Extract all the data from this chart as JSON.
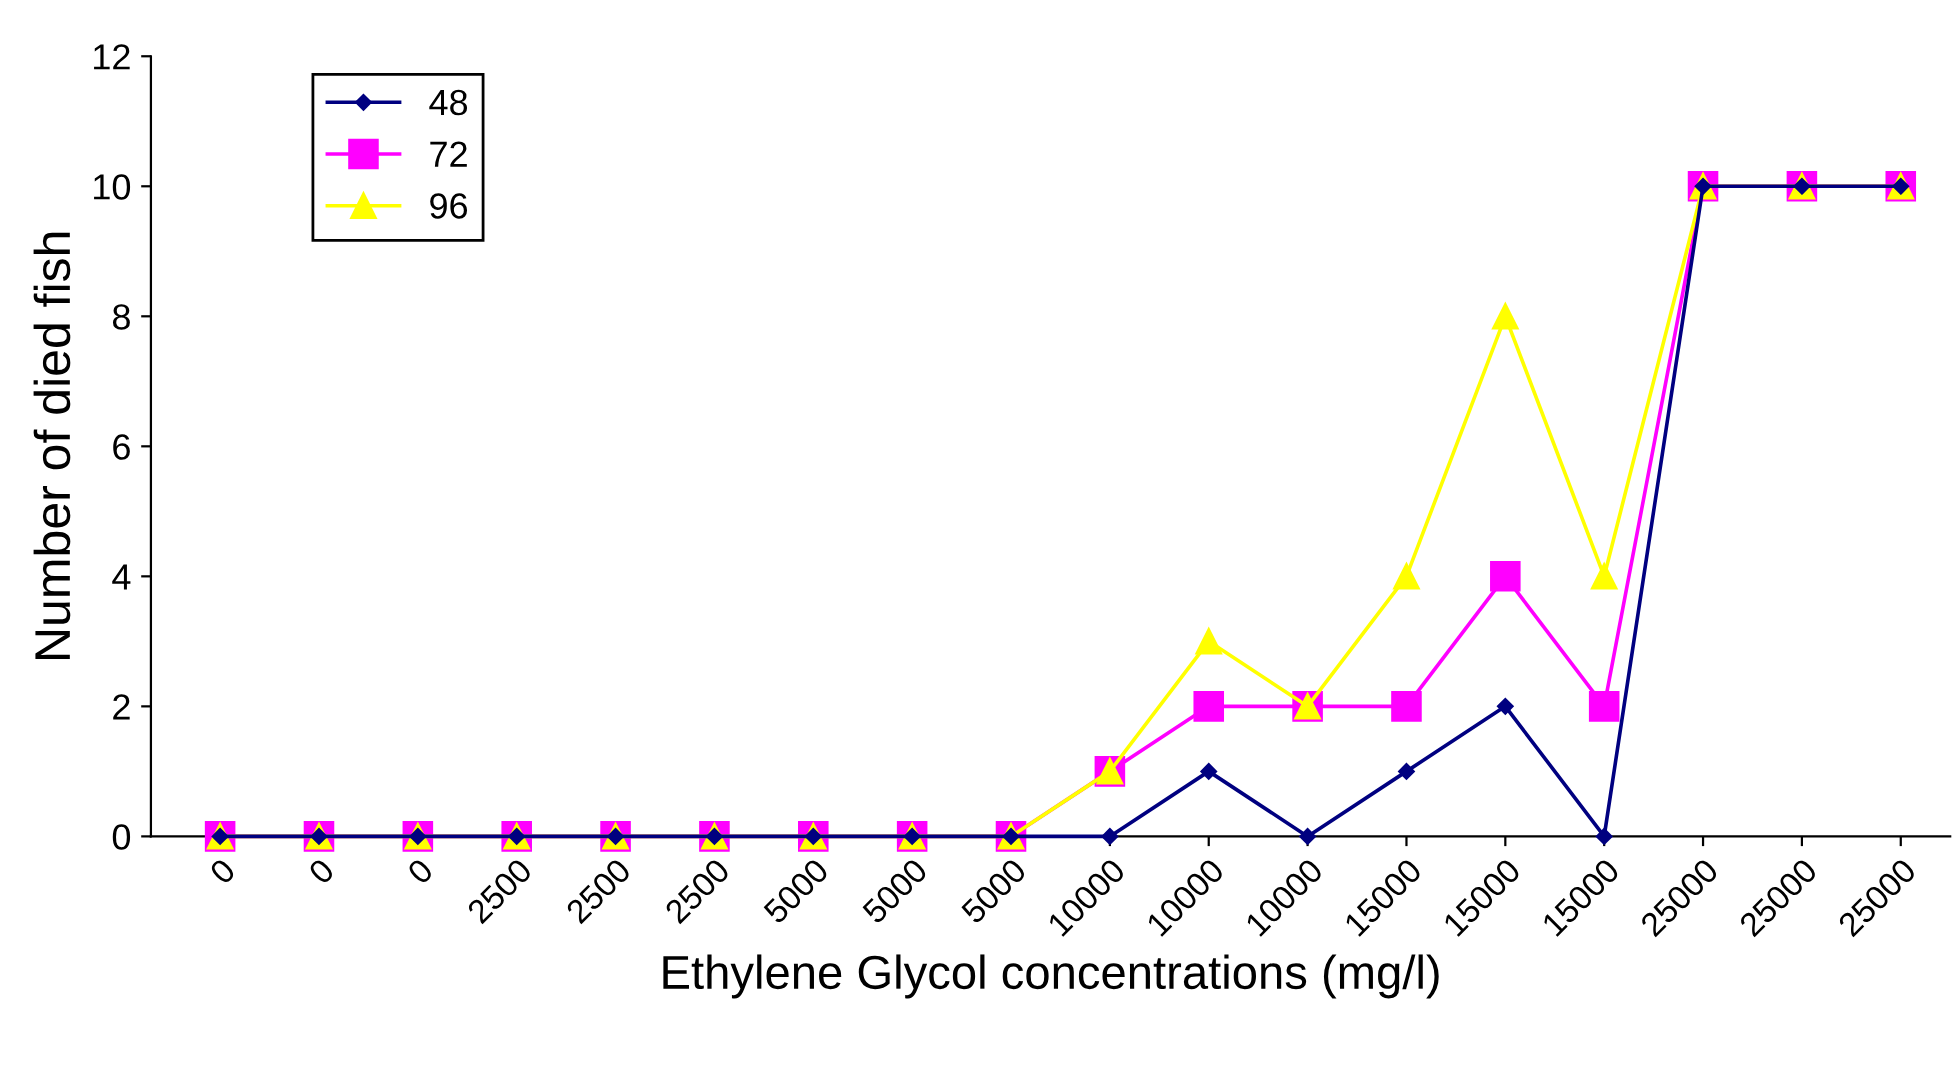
{
  "chart_data": {
    "type": "line",
    "xlabel": "Ethylene Glycol concentrations (mg/l)",
    "ylabel": "Number of died fish",
    "categories": [
      "0",
      "0",
      "0",
      "2500",
      "2500",
      "2500",
      "5000",
      "5000",
      "5000",
      "10000",
      "10000",
      "10000",
      "15000",
      "15000",
      "15000",
      "25000",
      "25000",
      "25000"
    ],
    "series": [
      {
        "name": "48",
        "color": "#000080",
        "marker": "diamond",
        "values": [
          0,
          0,
          0,
          0,
          0,
          0,
          0,
          0,
          0,
          0,
          1,
          0,
          1,
          2,
          0,
          10,
          10,
          10
        ]
      },
      {
        "name": "72",
        "color": "#ff00ff",
        "marker": "square",
        "values": [
          0,
          0,
          0,
          0,
          0,
          0,
          0,
          0,
          0,
          1,
          2,
          2,
          2,
          4,
          2,
          10,
          10,
          10
        ]
      },
      {
        "name": "96",
        "color": "#ffff00",
        "marker": "triangle",
        "values": [
          0,
          0,
          0,
          0,
          0,
          0,
          0,
          0,
          0,
          1,
          3,
          2,
          4,
          8,
          4,
          10,
          10,
          10
        ]
      }
    ],
    "ylim": [
      0,
      12
    ],
    "yticks": [
      0,
      2,
      4,
      6,
      8,
      10,
      12
    ],
    "grid": false,
    "legend": "top left",
    "line_style": "solid"
  }
}
